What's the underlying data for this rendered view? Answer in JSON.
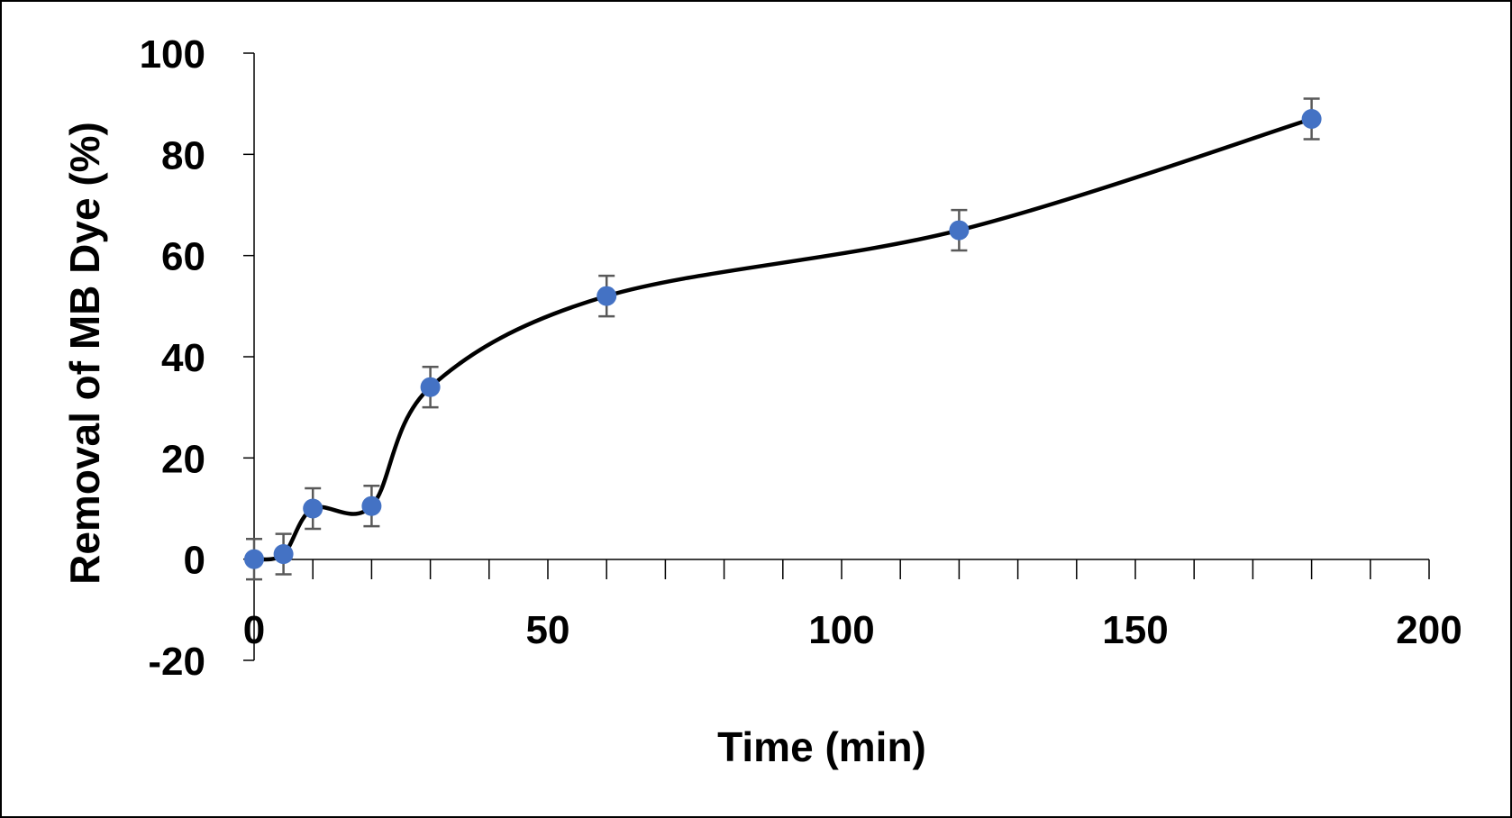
{
  "chart_data": {
    "type": "scatter",
    "xlabel": "Time (min)",
    "ylabel": "Removal of MB Dye  (%)",
    "xlim": [
      0,
      200
    ],
    "ylim": [
      -20,
      100
    ],
    "x_ticks": [
      0,
      50,
      100,
      150,
      200
    ],
    "x_minor_step": 10,
    "y_ticks": [
      -20,
      0,
      20,
      40,
      60,
      80,
      100
    ],
    "y_tick_labels": [
      "-20",
      "0",
      "20",
      "40",
      "60",
      "80",
      "100"
    ],
    "x_tick_labels": [
      "0",
      "50",
      "100",
      "150",
      "200"
    ],
    "grid": false,
    "legend": "none",
    "smooth_line": true,
    "series": [
      {
        "x": [
          0,
          5,
          10,
          20,
          30,
          60,
          120,
          180
        ],
        "y": [
          0,
          1,
          10,
          10.5,
          34,
          52,
          65,
          87
        ],
        "error": [
          4,
          4,
          4,
          4,
          4,
          4,
          4,
          4
        ],
        "marker_color": "#4472C4",
        "line_color": "#000000",
        "error_bar_color": "#595959"
      }
    ]
  }
}
